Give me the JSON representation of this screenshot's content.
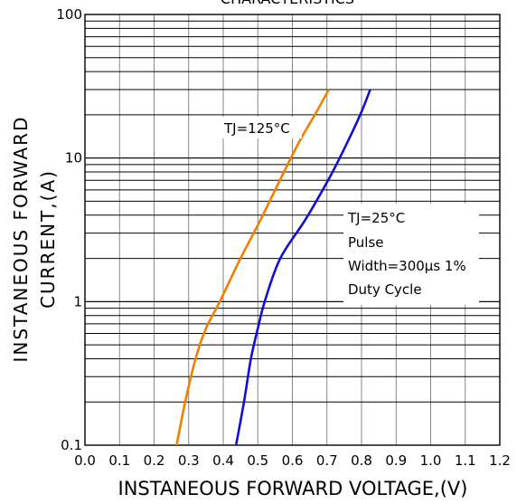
{
  "chart_data": {
    "type": "line",
    "title": "CHARACTERISTICS",
    "xlabel": "INSTANEOUS FORWARD VOLTAGE,(V)",
    "ylabel_lines": [
      "INSTANEOUS FORWARD",
      "CURRENT,(A)"
    ],
    "x_scale": "linear",
    "y_scale": "log",
    "xlim": [
      0.0,
      1.2
    ],
    "ylim": [
      0.1,
      100
    ],
    "x_ticks": [
      "0.0",
      "0.1",
      "0.2",
      "0.3",
      "0.4",
      "0.5",
      "0.6",
      "0.7",
      "0.8",
      "0.9",
      "1.0",
      "1.1",
      "1.2"
    ],
    "y_ticks": [
      "0.1",
      "1",
      "10",
      "100"
    ],
    "grid": true,
    "series": [
      {
        "name": "TJ=125°C",
        "color": "#f08000",
        "points": [
          [
            0.265,
            0.1
          ],
          [
            0.29,
            0.2
          ],
          [
            0.32,
            0.4
          ],
          [
            0.35,
            0.65
          ],
          [
            0.39,
            1.0
          ],
          [
            0.45,
            2.0
          ],
          [
            0.51,
            3.8
          ],
          [
            0.57,
            7.5
          ],
          [
            0.62,
            13
          ],
          [
            0.67,
            21
          ],
          [
            0.705,
            30
          ]
        ]
      },
      {
        "name": "TJ=25°C",
        "color": "#1010d0",
        "points": [
          [
            0.437,
            0.1
          ],
          [
            0.46,
            0.2
          ],
          [
            0.48,
            0.4
          ],
          [
            0.5,
            0.65
          ],
          [
            0.52,
            1.0
          ],
          [
            0.565,
            2.0
          ],
          [
            0.64,
            3.8
          ],
          [
            0.71,
            7.5
          ],
          [
            0.76,
            13
          ],
          [
            0.8,
            21
          ],
          [
            0.825,
            30
          ]
        ]
      }
    ],
    "annotations": {
      "t125": "TJ=125°C",
      "t25_lines": [
        "TJ=25°C",
        "Pulse",
        "Width=300μs 1%",
        "Duty Cycle"
      ]
    }
  }
}
